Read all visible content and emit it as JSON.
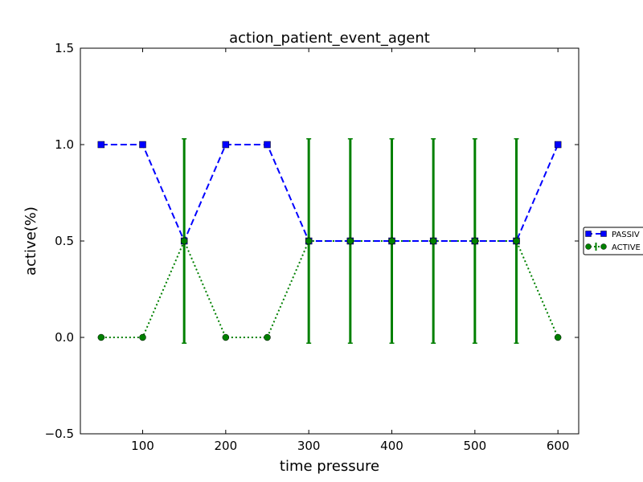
{
  "chart_data": {
    "type": "line",
    "title": "action_patient_event_agent",
    "xlabel": "time pressure",
    "ylabel": "active(%)",
    "xlim": [
      25,
      625
    ],
    "ylim": [
      -0.5,
      1.5
    ],
    "x_ticks": [
      100,
      200,
      300,
      400,
      500,
      600
    ],
    "x_tick_labels": [
      "100",
      "200",
      "300",
      "400",
      "500",
      "600"
    ],
    "y_ticks": [
      -0.5,
      0.0,
      0.5,
      1.0,
      1.5
    ],
    "y_tick_labels": [
      "−0.5",
      "0.0",
      "0.5",
      "1.0",
      "1.5"
    ],
    "x": [
      50,
      100,
      150,
      200,
      250,
      300,
      350,
      400,
      450,
      500,
      550,
      600
    ],
    "legend_position": "right, outside plot (clipped)",
    "series": [
      {
        "name": "PASSIV",
        "color": "#0000ff",
        "line_style": "dashed",
        "marker": "square",
        "values": [
          1.0,
          1.0,
          0.5,
          1.0,
          1.0,
          0.5,
          0.5,
          0.5,
          0.5,
          0.5,
          0.5,
          1.0
        ]
      },
      {
        "name": "ACTIVE",
        "color": "#008000",
        "line_style": "dotted",
        "marker": "circle",
        "values": [
          0.0,
          0.0,
          0.5,
          0.0,
          0.0,
          0.5,
          0.5,
          0.5,
          0.5,
          0.5,
          0.5,
          0.0
        ],
        "error": [
          0.0,
          0.0,
          0.53,
          0.0,
          0.0,
          0.53,
          0.53,
          0.53,
          0.53,
          0.53,
          0.53,
          0.0
        ]
      }
    ]
  }
}
